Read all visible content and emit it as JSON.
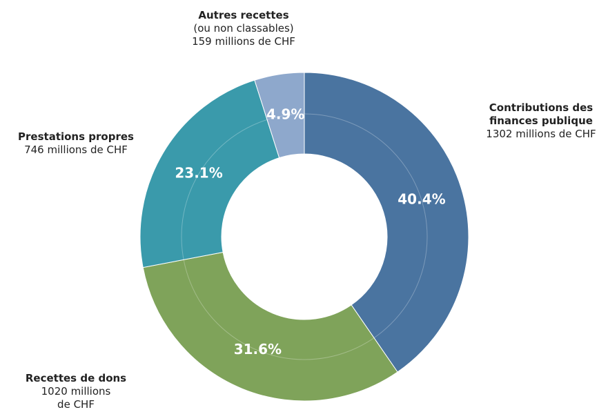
{
  "chart_data": {
    "type": "donut",
    "categories": [
      "Contributions des finances publique",
      "Recettes de dons",
      "Prestations propres",
      "Autres recettes"
    ],
    "category_notes": [
      null,
      null,
      null,
      "(ou non classables)"
    ],
    "values": [
      40.4,
      31.6,
      23.1,
      4.9
    ],
    "value_labels": [
      "40.4%",
      "31.6%",
      "23.1%",
      "4.9%"
    ],
    "amounts": [
      1302,
      1020,
      746,
      159
    ],
    "amount_labels": [
      "1302 millions de CHF",
      "1020 millions de CHF",
      "746 millions de CHF",
      "159 millions de CHF"
    ],
    "colors": [
      "#4a74a0",
      "#7fa35a",
      "#3a9aab",
      "#8ea8cc"
    ]
  }
}
